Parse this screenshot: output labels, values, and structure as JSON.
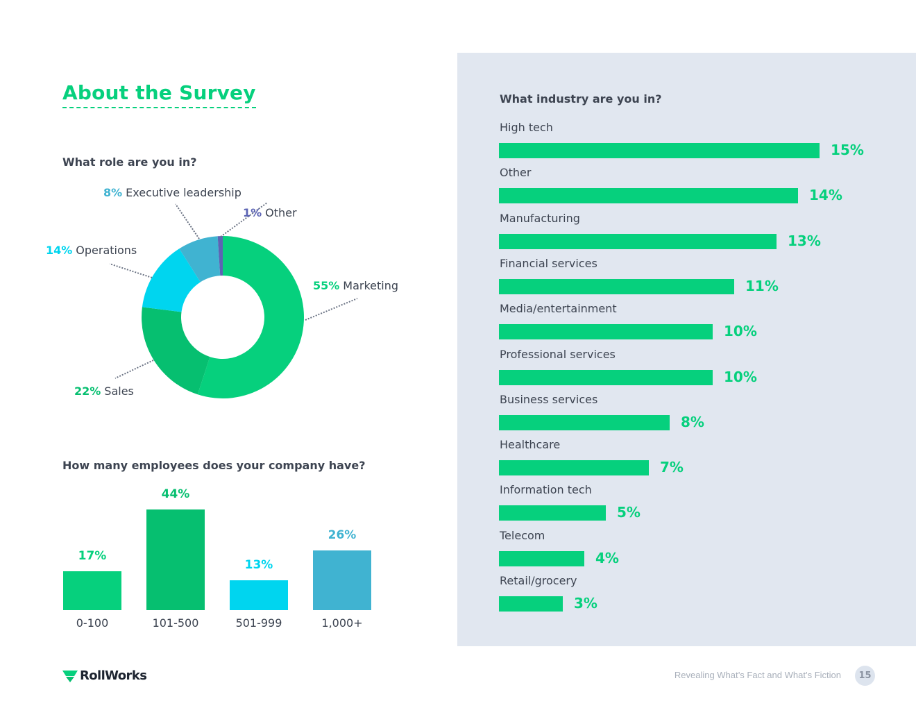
{
  "page": {
    "title": "About the Survey",
    "footer_text": "Revealing What’s Fact and What’s Fiction",
    "page_number": "15",
    "logo_text": "RollWorks"
  },
  "colors": {
    "green": "#06d07d",
    "dark_green": "#06bf70",
    "cyan": "#00d5ef",
    "teal": "#40b3d1",
    "indigo": "#5c64b4",
    "panel": "#e1e7f0",
    "text": "#3d4451"
  },
  "role": {
    "question": "What role are you in?"
  },
  "employees": {
    "question": "How many employees does your company have?"
  },
  "industry": {
    "question": "What industry are you in?"
  },
  "chart_data": [
    {
      "type": "pie",
      "donut": true,
      "title": "What role are you in?",
      "slices": [
        {
          "label": "Marketing",
          "value": 55,
          "pct_label": "55%",
          "color": "#06d07d"
        },
        {
          "label": "Sales",
          "value": 22,
          "pct_label": "22%",
          "color": "#06bf70"
        },
        {
          "label": "Operations",
          "value": 14,
          "pct_label": "14%",
          "color": "#00d5ef"
        },
        {
          "label": "Executive leadership",
          "value": 8,
          "pct_label": "8%",
          "color": "#40b3d1"
        },
        {
          "label": "Other",
          "value": 1,
          "pct_label": "1%",
          "color": "#5c64b4"
        }
      ]
    },
    {
      "type": "bar",
      "title": "How many employees does your company have?",
      "categories": [
        "0-100",
        "101-500",
        "501-999",
        "1,000+"
      ],
      "values": [
        17,
        44,
        13,
        26
      ],
      "value_labels": [
        "17%",
        "44%",
        "13%",
        "26%"
      ],
      "colors": [
        "#06d07d",
        "#06bf70",
        "#00d5ef",
        "#40b3d1"
      ],
      "ylim": [
        0,
        44
      ]
    },
    {
      "type": "bar",
      "orientation": "horizontal",
      "title": "What industry are you in?",
      "categories": [
        "High tech",
        "Other",
        "Manufacturing",
        "Financial services",
        "Media/entertainment",
        "Professional services",
        "Business services",
        "Healthcare",
        "Information tech",
        "Telecom",
        "Retail/grocery"
      ],
      "values": [
        15,
        14,
        13,
        11,
        10,
        10,
        8,
        7,
        5,
        4,
        3
      ],
      "value_labels": [
        "15%",
        "14%",
        "13%",
        "11%",
        "10%",
        "10%",
        "8%",
        "7%",
        "5%",
        "4%",
        "3%"
      ],
      "xlim": [
        0,
        15
      ]
    }
  ]
}
